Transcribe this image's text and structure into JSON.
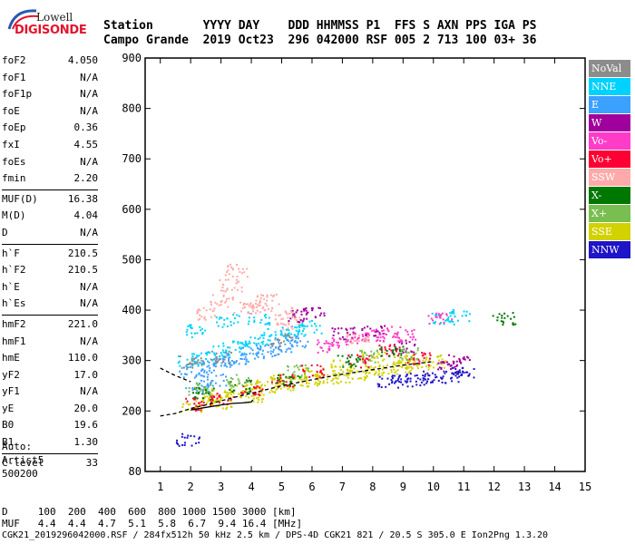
{
  "logo": {
    "line1": "Lowell",
    "line2": "DIGISONDE"
  },
  "header": {
    "row1": "Station       YYYY DAY    DDD HHMMSS P1  FFS S AXN PPS IGA PS",
    "row2": "Campo Grande  2019 Oct23  296 042000 RSF 005 2 713 100 03+ 36"
  },
  "params": [
    {
      "group": [
        {
          "name": "foF2",
          "value": "4.050"
        },
        {
          "name": "foF1",
          "value": "N/A"
        },
        {
          "name": "foF1p",
          "value": "N/A"
        },
        {
          "name": "foE",
          "value": "N/A"
        },
        {
          "name": "foEp",
          "value": "0.36"
        },
        {
          "name": "fxI",
          "value": "4.55"
        },
        {
          "name": "foEs",
          "value": "N/A"
        },
        {
          "name": "fmin",
          "value": "2.20"
        }
      ]
    },
    {
      "group": [
        {
          "name": "MUF(D)",
          "value": "16.38"
        },
        {
          "name": "M(D)",
          "value": "4.04"
        },
        {
          "name": "D",
          "value": "N/A"
        }
      ]
    },
    {
      "group": [
        {
          "name": "h`F",
          "value": "210.5"
        },
        {
          "name": "h`F2",
          "value": "210.5"
        },
        {
          "name": "h`E",
          "value": "N/A"
        },
        {
          "name": "h`Es",
          "value": "N/A"
        }
      ]
    },
    {
      "group": [
        {
          "name": "hmF2",
          "value": "221.0"
        },
        {
          "name": "hmF1",
          "value": "N/A"
        },
        {
          "name": "hmE",
          "value": "110.0"
        },
        {
          "name": "yF2",
          "value": "17.0"
        },
        {
          "name": "yF1",
          "value": "N/A"
        },
        {
          "name": "yE",
          "value": "20.0"
        },
        {
          "name": "B0",
          "value": "19.6"
        },
        {
          "name": "B1",
          "value": "1.30"
        }
      ]
    },
    {
      "group": [
        {
          "name": "C-level",
          "value": "33"
        }
      ]
    }
  ],
  "auto": {
    "line1": "Auto:",
    "line2": "Artist5",
    "line3": "500200"
  },
  "bottom": {
    "line1": "D     100  200  400  600  800 1000 1500 3000 [km]",
    "line2": "MUF   4.4  4.4  4.7  5.1  5.8  6.7  9.4 16.4 [MHz]",
    "line3": "CGK21_2019296042000.RSF / 284fx512h 50 kHz 2.5 km / DPS-4D CGK21 821 / 20.5 S 305.0 E Ion2Png 1.3.20"
  },
  "legend": [
    {
      "label": "NoVal",
      "color": "#8c8c8c"
    },
    {
      "label": "NNE",
      "color": "#00d2ff"
    },
    {
      "label": "E",
      "color": "#3ca0ff"
    },
    {
      "label": "W",
      "color": "#a0009b"
    },
    {
      "label": "Vo-",
      "color": "#ff3cc8"
    },
    {
      "label": "Vo+",
      "color": "#ff0032"
    },
    {
      "label": "SSW",
      "color": "#ffaaaa"
    },
    {
      "label": "X-",
      "color": "#007800"
    },
    {
      "label": "X+",
      "color": "#78be50"
    },
    {
      "label": "SSE",
      "color": "#d2d200"
    },
    {
      "label": "NNW",
      "color": "#1e14c8"
    }
  ],
  "chart_data": {
    "type": "scatter",
    "xlabel": "",
    "ylabel": "",
    "xlim": [
      0.5,
      15
    ],
    "ylim": [
      80,
      900
    ],
    "x_ticks": [
      1,
      2,
      3,
      4,
      5,
      6,
      7,
      8,
      9,
      10,
      11,
      12,
      13,
      14,
      15
    ],
    "y_ticks": [
      80,
      200,
      300,
      400,
      500,
      600,
      700,
      800,
      900
    ],
    "series": [
      {
        "name": "SSE",
        "color": "#d2d200",
        "points": [
          [
            2.0,
            210
          ],
          [
            2.5,
            222
          ],
          [
            3.0,
            232
          ],
          [
            3.5,
            240
          ],
          [
            4.0,
            246
          ],
          [
            4.5,
            250
          ],
          [
            5.0,
            255
          ],
          [
            5.5,
            258
          ],
          [
            6.0,
            262
          ],
          [
            6.5,
            266
          ],
          [
            7.0,
            270
          ],
          [
            7.5,
            275
          ],
          [
            8.0,
            280
          ],
          [
            8.5,
            285
          ],
          [
            9.0,
            290
          ],
          [
            9.5,
            295
          ],
          [
            10.0,
            300
          ],
          [
            3.0,
            215
          ],
          [
            4.0,
            230
          ],
          [
            5.0,
            262
          ],
          [
            6.0,
            275
          ],
          [
            7.0,
            290
          ],
          [
            8.0,
            310
          ],
          [
            9.0,
            300
          ]
        ]
      },
      {
        "name": "NNE",
        "color": "#00d2ff",
        "points": [
          [
            1.9,
            300
          ],
          [
            2.4,
            308
          ],
          [
            2.9,
            318
          ],
          [
            3.4,
            328
          ],
          [
            3.9,
            335
          ],
          [
            4.4,
            345
          ],
          [
            4.9,
            355
          ],
          [
            5.4,
            362
          ],
          [
            5.9,
            368
          ],
          [
            3.2,
            380
          ],
          [
            4.2,
            385
          ],
          [
            2.2,
            360
          ],
          [
            10.3,
            385
          ],
          [
            10.8,
            390
          ]
        ]
      },
      {
        "name": "E",
        "color": "#3ca0ff",
        "points": [
          [
            2.0,
            280
          ],
          [
            2.5,
            290
          ],
          [
            3.0,
            300
          ],
          [
            3.5,
            305
          ],
          [
            4.0,
            315
          ],
          [
            4.5,
            322
          ],
          [
            5.0,
            330
          ],
          [
            5.5,
            338
          ],
          [
            2.2,
            250
          ],
          [
            2.8,
            262
          ]
        ]
      },
      {
        "name": "W",
        "color": "#a0009b",
        "points": [
          [
            5.5,
            390
          ],
          [
            6.0,
            395
          ],
          [
            7.0,
            355
          ],
          [
            8.0,
            360
          ],
          [
            9.0,
            330
          ],
          [
            10.5,
            290
          ],
          [
            10.8,
            300
          ]
        ]
      },
      {
        "name": "Vo-",
        "color": "#ff3cc8",
        "points": [
          [
            6.5,
            330
          ],
          [
            7.0,
            340
          ],
          [
            7.5,
            348
          ],
          [
            8.0,
            352
          ],
          [
            8.5,
            358
          ],
          [
            9.0,
            350
          ],
          [
            10.2,
            385
          ]
        ]
      },
      {
        "name": "Vo+",
        "color": "#ff0032",
        "points": [
          [
            2.2,
            215
          ],
          [
            3.0,
            225
          ],
          [
            4.0,
            240
          ],
          [
            5.0,
            260
          ],
          [
            6.0,
            280
          ],
          [
            7.5,
            300
          ],
          [
            8.5,
            320
          ],
          [
            9.5,
            305
          ]
        ]
      },
      {
        "name": "SSW",
        "color": "#ffaaaa",
        "points": [
          [
            2.5,
            395
          ],
          [
            3.0,
            420
          ],
          [
            3.3,
            450
          ],
          [
            3.5,
            480
          ],
          [
            3.8,
            405
          ],
          [
            4.2,
            410
          ],
          [
            4.5,
            420
          ],
          [
            5.0,
            395
          ],
          [
            5.2,
            375
          ],
          [
            7.5,
            345
          ]
        ]
      },
      {
        "name": "X-",
        "color": "#007800",
        "points": [
          [
            2.4,
            235
          ],
          [
            3.6,
            250
          ],
          [
            5.2,
            265
          ],
          [
            7.2,
            300
          ],
          [
            8.6,
            320
          ],
          [
            12.3,
            385
          ]
        ]
      },
      {
        "name": "X+",
        "color": "#78be50",
        "points": [
          [
            2.3,
            245
          ],
          [
            3.5,
            262
          ],
          [
            5.5,
            280
          ],
          [
            7.8,
            310
          ],
          [
            9.2,
            315
          ]
        ]
      },
      {
        "name": "NNW",
        "color": "#1e14c8",
        "points": [
          [
            8.5,
            260
          ],
          [
            9.0,
            265
          ],
          [
            9.5,
            262
          ],
          [
            10.0,
            268
          ],
          [
            10.5,
            270
          ],
          [
            11.0,
            275
          ],
          [
            1.9,
            145
          ]
        ]
      },
      {
        "name": "NoVal",
        "color": "#8c8c8c",
        "points": [
          [
            2.0,
            300
          ],
          [
            3.0,
            310
          ],
          [
            5.0,
            340
          ]
        ]
      }
    ],
    "curves": [
      {
        "name": "trace",
        "color": "#000000",
        "points": [
          [
            2.0,
            202
          ],
          [
            2.3,
            205
          ],
          [
            2.6,
            208
          ],
          [
            3.0,
            212
          ],
          [
            3.4,
            215
          ],
          [
            3.7,
            216
          ],
          [
            4.0,
            218
          ],
          [
            4.05,
            222
          ]
        ]
      },
      {
        "name": "profile",
        "color": "#000000",
        "dashed": true,
        "points": [
          [
            1.0,
            190
          ],
          [
            1.5,
            195
          ],
          [
            2.0,
            205
          ],
          [
            2.5,
            212
          ],
          [
            3.0,
            220
          ],
          [
            3.5,
            228
          ],
          [
            4.0,
            235
          ],
          [
            5.0,
            250
          ],
          [
            6.0,
            262
          ],
          [
            7.0,
            273
          ],
          [
            8.0,
            282
          ],
          [
            9.0,
            291
          ],
          [
            10.0,
            298
          ]
        ]
      },
      {
        "name": "profile-upper",
        "color": "#000000",
        "dashed": true,
        "points": [
          [
            1.0,
            285
          ],
          [
            1.5,
            270
          ],
          [
            2.0,
            258
          ]
        ]
      }
    ]
  }
}
